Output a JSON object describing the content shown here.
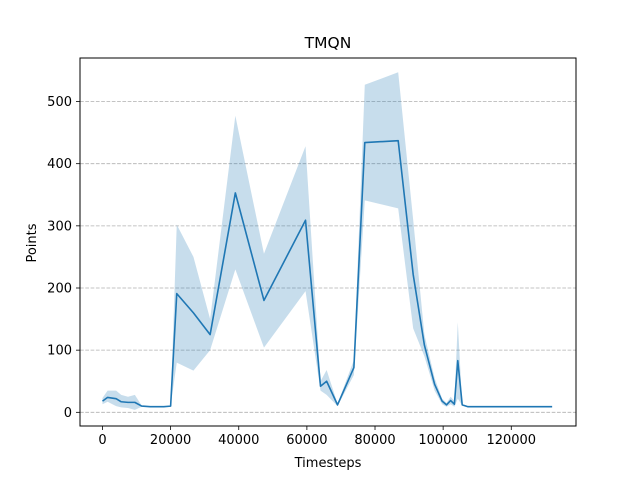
{
  "chart_data": {
    "type": "line",
    "title": "TMQN",
    "xlabel": "Timesteps",
    "ylabel": "Points",
    "xlim": [
      -6600,
      139000
    ],
    "ylim": [
      -22,
      570
    ],
    "xticks": [
      0,
      20000,
      40000,
      60000,
      80000,
      100000,
      120000
    ],
    "xtick_labels": [
      "0",
      "20000",
      "40000",
      "60000",
      "80000",
      "100000",
      "120000"
    ],
    "yticks": [
      0,
      100,
      200,
      300,
      400,
      500
    ],
    "ytick_labels": [
      "0",
      "100",
      "200",
      "300",
      "400",
      "500"
    ],
    "grid": "y-dashed",
    "legend": "none",
    "colors": {
      "line": "#1f77b4",
      "band": "#1f77b4",
      "grid": "#b0b0b0"
    },
    "series": [
      {
        "x": [
          0,
          1500,
          4000,
          5500,
          7500,
          9500,
          11500,
          14000,
          16000,
          18000,
          20000,
          21800,
          26700,
          31600,
          39000,
          47400,
          59600,
          64000,
          65800,
          69000,
          73800,
          77000,
          86800,
          91200,
          94500,
          97500,
          99700,
          101000,
          102200,
          103300,
          104300,
          105600,
          107300,
          110000,
          120000,
          132000
        ],
        "mean": [
          18,
          24,
          22,
          17,
          16,
          16,
          10,
          9,
          9,
          9,
          10,
          191,
          160,
          125,
          353,
          180,
          309,
          42,
          50,
          12,
          72,
          434,
          437,
          222,
          108,
          45,
          18,
          12,
          19,
          13,
          83,
          12,
          9,
          9,
          9,
          9
        ],
        "lower": [
          13,
          17,
          10,
          8,
          7,
          4,
          9,
          9,
          9,
          9,
          10,
          80,
          67,
          100,
          230,
          104,
          195,
          35,
          28,
          10,
          60,
          341,
          328,
          135,
          90,
          35,
          13,
          9,
          13,
          9,
          22,
          11,
          9,
          9,
          9,
          9
        ],
        "upper": [
          23,
          35,
          35,
          28,
          25,
          28,
          11,
          9,
          9,
          9,
          10,
          302,
          250,
          150,
          477,
          255,
          428,
          50,
          68,
          14,
          84,
          527,
          547,
          310,
          125,
          55,
          22,
          15,
          25,
          18,
          145,
          13,
          9,
          9,
          9,
          9
        ]
      }
    ]
  }
}
